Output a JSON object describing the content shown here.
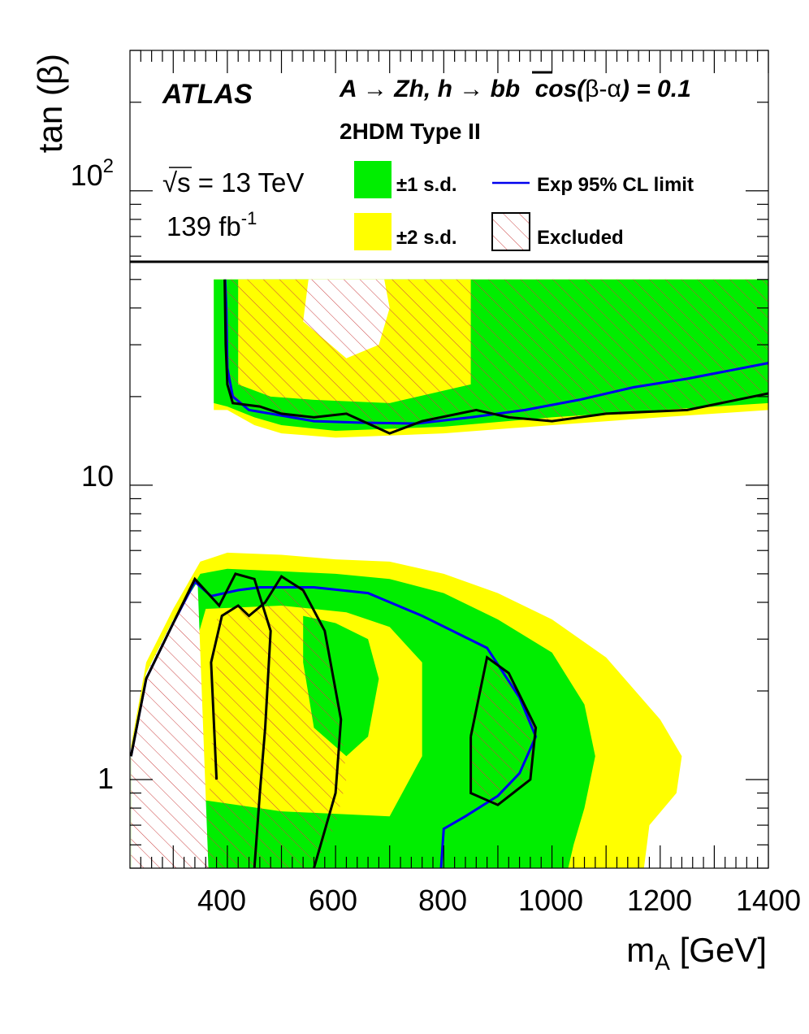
{
  "chart_data": {
    "type": "area",
    "x_axis": {
      "label_main": "m",
      "label_sub": "A",
      "label_unit": " [GeV]",
      "range": [
        220,
        1400
      ],
      "ticks": [
        400,
        600,
        800,
        1000,
        1200,
        1400
      ],
      "tick_labels": [
        "400",
        "600",
        "800",
        "1000",
        "1200",
        "1400"
      ]
    },
    "y_axis": {
      "label": "tan (β)",
      "scale": "log",
      "range": [
        0.5,
        300
      ],
      "tick_labels": {
        "hundred": "10",
        "hundred_exp": "2",
        "ten": "10",
        "one": "1"
      }
    },
    "text": {
      "experiment": "ATLAS",
      "process_lines": [
        "A",
        "→",
        "Zh, h",
        "→",
        "b",
        "b",
        "cos(",
        "β-α",
        ") = 0.1"
      ],
      "model": "2HDM Type II",
      "energy_root": "√",
      "energy_s": "s",
      "energy_rest": " = 13 TeV",
      "lumi": "139 fb",
      "lumi_exp": "-1"
    },
    "legend": {
      "sd1": "±1 s.d.",
      "sd2": "±2 s.d.",
      "expected": "Exp 95% CL limit",
      "excluded": "Excluded"
    },
    "colors": {
      "sd1": "#00ee00",
      "sd2": "#ffff00",
      "expected": "#0000ee",
      "excluded_hatch": "#cc3333",
      "observed": "#000000"
    },
    "upper_frame_tanb": 50,
    "high_band": {
      "yellow_low": [
        [
          375,
          18
        ],
        [
          400,
          18
        ],
        [
          450,
          16
        ],
        [
          500,
          15
        ],
        [
          600,
          14.5
        ],
        [
          800,
          15
        ],
        [
          1000,
          16
        ],
        [
          1200,
          17
        ],
        [
          1400,
          18
        ]
      ],
      "green_low": [
        [
          375,
          19
        ],
        [
          400,
          18.5
        ],
        [
          450,
          17
        ],
        [
          500,
          16
        ],
        [
          600,
          15.3
        ],
        [
          800,
          15.8
        ],
        [
          1000,
          17
        ],
        [
          1200,
          18
        ],
        [
          1400,
          19
        ]
      ],
      "expected": [
        [
          396,
          50
        ],
        [
          398,
          40
        ],
        [
          400,
          25
        ],
        [
          410,
          20
        ],
        [
          440,
          18
        ],
        [
          480,
          17.5
        ],
        [
          560,
          16.5
        ],
        [
          650,
          16.3
        ],
        [
          750,
          16.2
        ],
        [
          850,
          17
        ],
        [
          950,
          18
        ],
        [
          1050,
          19.5
        ],
        [
          1150,
          21.5
        ],
        [
          1250,
          23
        ],
        [
          1400,
          26
        ]
      ],
      "observed": [
        [
          395,
          50
        ],
        [
          397,
          30
        ],
        [
          400,
          22
        ],
        [
          410,
          19
        ],
        [
          460,
          18.5
        ],
        [
          500,
          17.5
        ],
        [
          560,
          17
        ],
        [
          620,
          17.5
        ],
        [
          700,
          15
        ],
        [
          760,
          16.5
        ],
        [
          860,
          18
        ],
        [
          920,
          17
        ],
        [
          1000,
          16.5
        ],
        [
          1100,
          17.5
        ],
        [
          1250,
          18
        ],
        [
          1400,
          20.5
        ]
      ]
    },
    "low_band": {
      "yellow_upper": [
        [
          222,
          1.3
        ],
        [
          250,
          2.5
        ],
        [
          300,
          3.8
        ],
        [
          350,
          5.5
        ],
        [
          400,
          5.9
        ],
        [
          500,
          5.8
        ],
        [
          600,
          5.6
        ],
        [
          700,
          5.5
        ],
        [
          800,
          5
        ],
        [
          900,
          4.3
        ],
        [
          1000,
          3.5
        ],
        [
          1100,
          2.6
        ],
        [
          1200,
          1.6
        ],
        [
          1240,
          1.2
        ],
        [
          1230,
          0.9
        ],
        [
          1180,
          0.7
        ],
        [
          1170,
          0.5
        ]
      ],
      "green_upper": [
        [
          222,
          1.25
        ],
        [
          250,
          2.3
        ],
        [
          300,
          3.5
        ],
        [
          350,
          5.0
        ],
        [
          400,
          5.2
        ],
        [
          500,
          5.1
        ],
        [
          600,
          5.0
        ],
        [
          700,
          4.8
        ],
        [
          800,
          4.3
        ],
        [
          900,
          3.5
        ],
        [
          1000,
          2.7
        ],
        [
          1060,
          1.8
        ],
        [
          1080,
          1.2
        ],
        [
          1060,
          0.8
        ],
        [
          1040,
          0.6
        ],
        [
          1030,
          0.5
        ]
      ],
      "expected": [
        [
          222,
          1.2
        ],
        [
          250,
          2.2
        ],
        [
          300,
          3.4
        ],
        [
          340,
          4.7
        ],
        [
          370,
          4.2
        ],
        [
          420,
          4.4
        ],
        [
          460,
          4.5
        ],
        [
          560,
          4.5
        ],
        [
          660,
          4.3
        ],
        [
          760,
          3.6
        ],
        [
          880,
          2.8
        ],
        [
          940,
          1.9
        ],
        [
          970,
          1.4
        ],
        [
          940,
          1.05
        ],
        [
          900,
          0.88
        ],
        [
          840,
          0.75
        ],
        [
          800,
          0.68
        ],
        [
          795,
          0.5
        ]
      ],
      "observed": [
        [
          222,
          1.2
        ],
        [
          250,
          2.2
        ],
        [
          300,
          3.4
        ],
        [
          340,
          4.8
        ],
        [
          385,
          3.9
        ],
        [
          415,
          5.0
        ],
        [
          450,
          4.8
        ],
        [
          480,
          3.2
        ],
        [
          470,
          1.5
        ],
        [
          460,
          0.9
        ],
        [
          450,
          0.5
        ]
      ]
    }
  }
}
